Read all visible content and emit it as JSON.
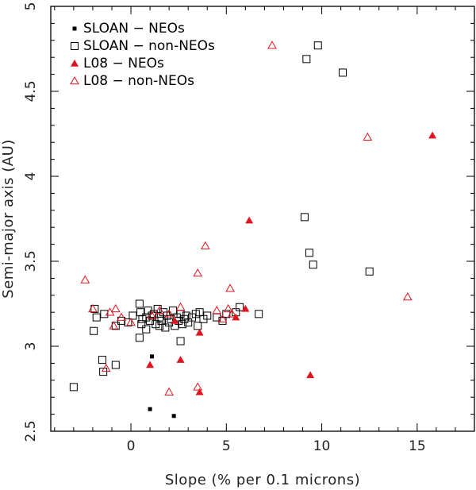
{
  "chart_data": {
    "type": "scatter",
    "xlabel": "Slope (% per 0.1 microns)",
    "ylabel": "Semi-major axis (AU)",
    "xlim": [
      -4.2,
      18
    ],
    "ylim": [
      2.5,
      5
    ],
    "xticks": [
      0,
      5,
      10,
      15
    ],
    "xtick_labels": [
      "0",
      "5",
      "10",
      "15"
    ],
    "yticks": [
      2.5,
      3,
      3.5,
      4,
      4.5,
      5
    ],
    "ytick_labels": [
      "2.5",
      "3",
      "3.5",
      "4",
      "4.5",
      "5"
    ],
    "legend_position": "top-left",
    "series": [
      {
        "name": "SLOAN − NEOs",
        "marker": "filled-square",
        "color": "#000000",
        "points": [
          [
            1.1,
            2.94
          ],
          [
            1.0,
            2.63
          ],
          [
            2.25,
            2.59
          ]
        ]
      },
      {
        "name": "SLOAN − non-NEOs",
        "marker": "open-square",
        "color": "#000000",
        "points": [
          [
            -3.0,
            2.76
          ],
          [
            -1.5,
            2.92
          ],
          [
            -1.45,
            2.85
          ],
          [
            -0.8,
            2.89
          ],
          [
            -1.9,
            3.22
          ],
          [
            -1.8,
            3.17
          ],
          [
            -1.4,
            3.19
          ],
          [
            -1.95,
            3.09
          ],
          [
            -0.8,
            3.12
          ],
          [
            -0.5,
            3.15
          ],
          [
            -0.15,
            3.14
          ],
          [
            0.1,
            3.18
          ],
          [
            0.45,
            3.25
          ],
          [
            0.5,
            3.2
          ],
          [
            0.45,
            3.05
          ],
          [
            0.55,
            3.13
          ],
          [
            0.6,
            3.16
          ],
          [
            0.8,
            3.17
          ],
          [
            0.9,
            3.21
          ],
          [
            1.0,
            3.15
          ],
          [
            1.1,
            3.18
          ],
          [
            1.2,
            3.19
          ],
          [
            1.3,
            3.13
          ],
          [
            1.4,
            3.22
          ],
          [
            1.5,
            3.17
          ],
          [
            1.6,
            3.15
          ],
          [
            1.7,
            3.2
          ],
          [
            1.8,
            3.11
          ],
          [
            1.9,
            3.18
          ],
          [
            2.0,
            3.14
          ],
          [
            2.1,
            3.16
          ],
          [
            2.2,
            3.21
          ],
          [
            2.3,
            3.12
          ],
          [
            2.4,
            3.17
          ],
          [
            2.5,
            3.15
          ],
          [
            2.6,
            3.19
          ],
          [
            2.7,
            3.13
          ],
          [
            2.8,
            3.16
          ],
          [
            2.9,
            3.18
          ],
          [
            3.0,
            3.14
          ],
          [
            3.2,
            3.17
          ],
          [
            3.4,
            3.19
          ],
          [
            3.5,
            3.12
          ],
          [
            3.6,
            3.2
          ],
          [
            3.8,
            3.16
          ],
          [
            4.0,
            3.18
          ],
          [
            4.5,
            3.17
          ],
          [
            4.8,
            3.15
          ],
          [
            5.0,
            3.19
          ],
          [
            5.5,
            3.2
          ],
          [
            5.7,
            3.23
          ],
          [
            6.7,
            3.19
          ],
          [
            2.6,
            3.03
          ],
          [
            0.8,
            3.1
          ],
          [
            1.5,
            3.12
          ],
          [
            9.1,
            3.76
          ],
          [
            9.35,
            3.55
          ],
          [
            9.55,
            3.48
          ],
          [
            12.5,
            3.44
          ],
          [
            9.2,
            4.69
          ],
          [
            9.8,
            4.77
          ],
          [
            11.1,
            4.61
          ]
        ]
      },
      {
        "name": "L08 − NEOs",
        "marker": "filled-triangle",
        "color": "#e0141e",
        "points": [
          [
            1.0,
            2.89
          ],
          [
            2.6,
            2.92
          ],
          [
            3.6,
            2.73
          ],
          [
            9.4,
            2.83
          ],
          [
            3.6,
            3.08
          ],
          [
            2.3,
            3.15
          ],
          [
            5.5,
            3.17
          ],
          [
            6.0,
            3.22
          ],
          [
            6.2,
            3.74
          ],
          [
            15.8,
            4.24
          ]
        ]
      },
      {
        "name": "L08 − non-NEOs",
        "marker": "open-triangle",
        "color": "#e0141e",
        "points": [
          [
            -2.4,
            3.39
          ],
          [
            -1.3,
            2.87
          ],
          [
            -2.0,
            3.22
          ],
          [
            -1.1,
            3.2
          ],
          [
            -0.8,
            3.22
          ],
          [
            -0.5,
            3.17
          ],
          [
            0.0,
            3.14
          ],
          [
            -0.9,
            3.12
          ],
          [
            1.1,
            3.18
          ],
          [
            1.5,
            3.21
          ],
          [
            2.0,
            3.19
          ],
          [
            2.6,
            3.23
          ],
          [
            3.5,
            3.43
          ],
          [
            3.9,
            3.59
          ],
          [
            3.5,
            2.76
          ],
          [
            2.0,
            2.73
          ],
          [
            4.5,
            3.21
          ],
          [
            4.8,
            3.16
          ],
          [
            5.1,
            3.22
          ],
          [
            5.2,
            3.34
          ],
          [
            5.3,
            3.19
          ],
          [
            7.4,
            4.77
          ],
          [
            12.4,
            4.23
          ],
          [
            14.5,
            3.29
          ]
        ]
      }
    ]
  }
}
